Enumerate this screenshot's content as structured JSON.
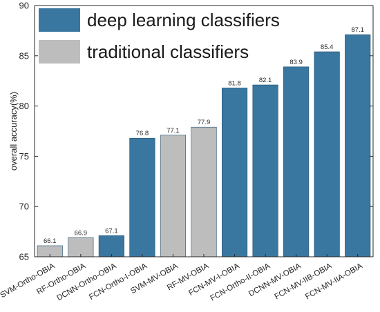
{
  "chart_data": {
    "type": "bar",
    "categories": [
      "SVM-Ortho-OBIA",
      "RF-Ortho-OBIA",
      "DCNN-Ortho-OBIA",
      "FCN-Ortho-I-OBIA",
      "SVM-MV-OBIA",
      "RF-MV-OBIA",
      "FCN-MV-I-OBIA",
      "FCN-Ortho-II-OBIA",
      "DCNN-MV-OBIA",
      "FCN-MV-IIB-OBIA",
      "FCN-MV-IIA-OBIA"
    ],
    "values": [
      66.1,
      66.9,
      67.1,
      76.8,
      77.1,
      77.9,
      81.8,
      82.1,
      83.9,
      85.4,
      87.1
    ],
    "value_labels": [
      "66.1",
      "66.9",
      "67.1",
      "76.8",
      "77.1",
      "77.9",
      "81.8",
      "82.1",
      "83.9",
      "85.4",
      "87.1"
    ],
    "groups": [
      "traditional",
      "traditional",
      "deep",
      "deep",
      "traditional",
      "traditional",
      "deep",
      "deep",
      "deep",
      "deep",
      "deep"
    ],
    "legend": [
      {
        "key": "deep",
        "name": "deep learning classifiers",
        "color": "#3a77a0"
      },
      {
        "key": "traditional",
        "name": "traditional classifiers",
        "color": "#bdbdbd"
      }
    ],
    "legend_position": "top-left",
    "title": "",
    "xlabel": "",
    "ylabel": "overall accuracy(%)",
    "ylim": [
      65,
      90
    ],
    "yticks": [
      65,
      70,
      75,
      80,
      85,
      90
    ],
    "grid": false
  }
}
